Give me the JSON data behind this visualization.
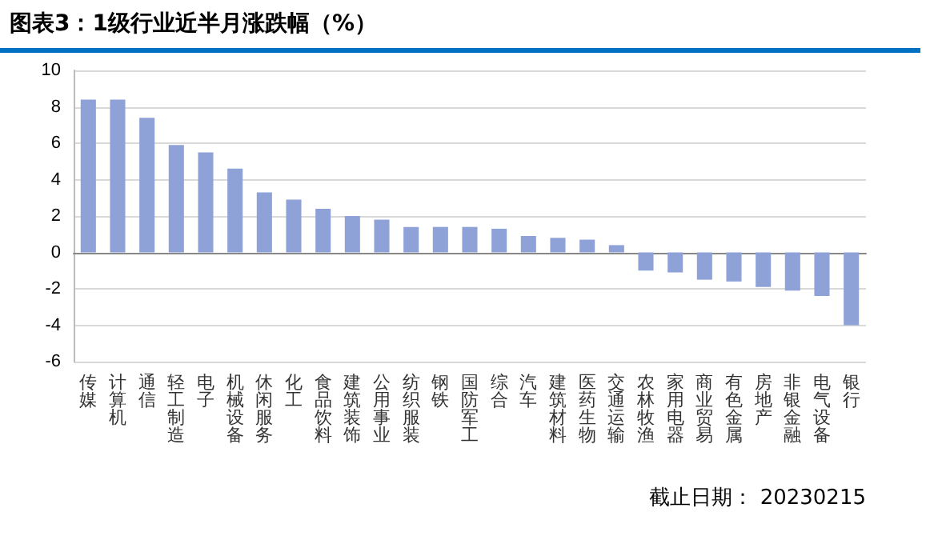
{
  "chart_data": {
    "type": "bar",
    "title": "图表3：1级行业近半月涨跌幅（%）",
    "categories": [
      "传媒",
      "计算机",
      "通信",
      "轻工制造",
      "电子",
      "机械设备",
      "休闲服务",
      "化工",
      "食品饮料",
      "建筑装饰",
      "公用事业",
      "纺织服装",
      "钢铁",
      "国防军工",
      "综合",
      "汽车",
      "建筑材料",
      "医药生物",
      "交通运输",
      "农林牧渔",
      "家用电器",
      "商业贸易",
      "有色金属",
      "房地产",
      "非银金融",
      "电气设备",
      "银行"
    ],
    "values": [
      8.4,
      8.4,
      7.4,
      5.9,
      5.5,
      4.6,
      3.3,
      2.9,
      2.4,
      2.0,
      1.8,
      1.4,
      1.4,
      1.4,
      1.3,
      0.9,
      0.8,
      0.7,
      0.4,
      -1.0,
      -1.1,
      -1.5,
      -1.6,
      -1.9,
      -2.1,
      -2.4,
      -4.0
    ],
    "color": "#8fa2d8",
    "ylim": [
      -6,
      10
    ],
    "yticks": [
      -6,
      -4,
      -2,
      0,
      2,
      4,
      6,
      8,
      10
    ],
    "grid": "y",
    "annotations": [
      "截止日期：  20230215"
    ]
  }
}
